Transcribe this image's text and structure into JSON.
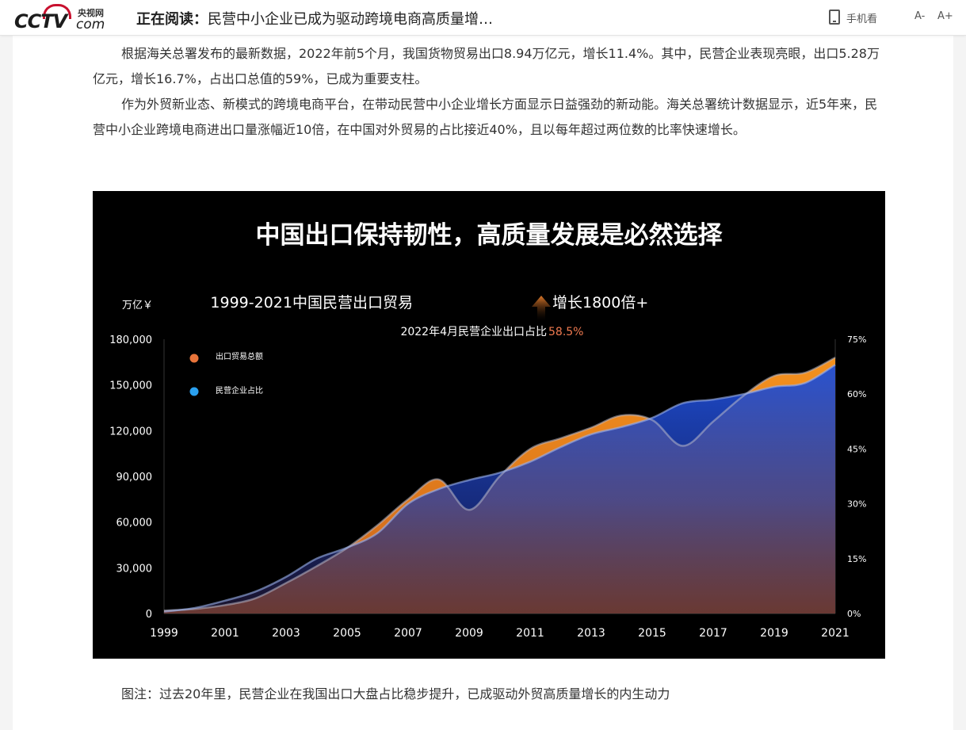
{
  "header": {
    "logo_cn": "央视网",
    "logo_mark": "CCTV",
    "logo_com": "com",
    "reading_label": "正在阅读：",
    "reading_title": "民营中小企业已成为驱动跨境电商高质量增…",
    "mobile_label": "手机看",
    "font_decrease": "A-",
    "font_increase": "A+"
  },
  "article": {
    "paragraphs": [
      "根据海关总署发布的最新数据，2022年前5个月，我国货物贸易出口8.94万亿元，增长11.4%。其中，民营企业表现亮眼，出口5.28万亿元，增长16.7%，占出口总值的59%，已成为重要支柱。",
      "作为外贸新业态、新模式的跨境电商平台，在带动民营中小企业增长方面显示日益强劲的新动能。海关总署统计数据显示，近5年来，民营中小企业跨境电商进出口量涨幅近10倍，在中国对外贸易的占比接近40%，且以每年超过两位数的比率快速增长。"
    ],
    "caption": "图注：过去20年里，民营企业在我国出口大盘占比稳步提升，已成驱动外贸高质量增长的内生动力"
  },
  "chart_data": {
    "type": "area",
    "title": "中国出口保持韧性，高质量发展是必然选择",
    "subtitle_main": "1999-2021中国民营出口贸易",
    "subtitle_growth": "增长1800倍+",
    "subtitle2_prefix": "2022年4月民营企业出口占比",
    "subtitle2_value": "58.5%",
    "ylabel_left": "万亿￥",
    "left_ticks": [
      "0",
      "30,000",
      "60,000",
      "90,000",
      "120,000",
      "150,000",
      "180,000"
    ],
    "ylim_left": [
      0,
      180000
    ],
    "right_ticks": [
      "0%",
      "15%",
      "30%",
      "45%",
      "60%",
      "75%"
    ],
    "ylim_right": [
      0,
      75
    ],
    "x_ticks": [
      "1999",
      "2001",
      "2003",
      "2005",
      "2007",
      "2009",
      "2011",
      "2013",
      "2015",
      "2017",
      "2019",
      "2021"
    ],
    "x": [
      1999,
      2000,
      2001,
      2002,
      2003,
      2004,
      2005,
      2006,
      2007,
      2008,
      2009,
      2010,
      2011,
      2012,
      2013,
      2014,
      2015,
      2016,
      2017,
      2018,
      2019,
      2020,
      2021
    ],
    "series": [
      {
        "name": "出口贸易总额",
        "axis": "left",
        "color": "#f08c1a",
        "values": [
          1900,
          3000,
          5500,
          10000,
          20000,
          31000,
          43000,
          58000,
          75000,
          88000,
          68000,
          90000,
          108000,
          115000,
          122000,
          130000,
          127000,
          110000,
          126000,
          143000,
          156000,
          158000,
          168000
        ]
      },
      {
        "name": "民营企业占比",
        "axis": "right",
        "color": "#2f6fe0",
        "values": [
          0.5,
          1.5,
          3.5,
          6,
          10,
          15,
          18,
          22,
          30,
          34,
          36.5,
          38.5,
          41.5,
          45.5,
          49,
          51,
          53.5,
          57.5,
          58.5,
          60,
          62,
          63,
          68
        ]
      }
    ],
    "legend_placement": "top-left",
    "grid": false
  }
}
